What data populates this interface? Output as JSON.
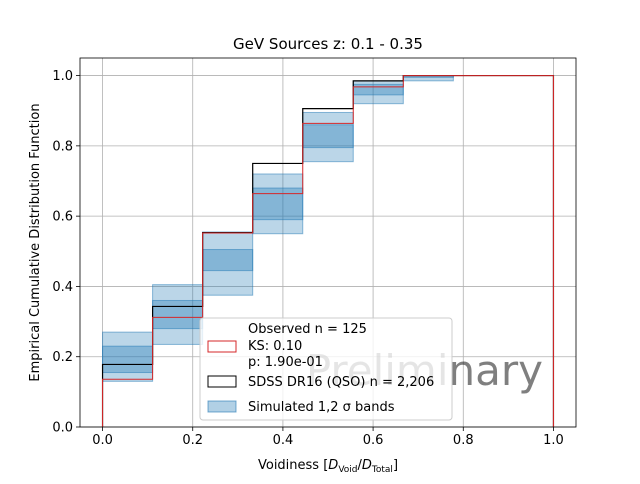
{
  "chart_data": {
    "type": "step",
    "title": "GeV Sources z: 0.1 - 0.35",
    "xlabel": "Voidiness [",
    "xlabel_tex": {
      "num": "D",
      "num_sub": "Void",
      "sep": "/",
      "den": "D",
      "den_sub": "Total",
      "close": "]"
    },
    "ylabel": "Empirical Cumulative Distribution Function",
    "xlim": [
      -0.05,
      1.05
    ],
    "ylim": [
      0.0,
      1.05
    ],
    "xticks": [
      "0.0",
      "0.2",
      "0.4",
      "0.6",
      "0.8",
      "1.0"
    ],
    "yticks": [
      "0.0",
      "0.2",
      "0.4",
      "0.6",
      "0.8",
      "1.0"
    ],
    "xtick_values": [
      0.0,
      0.2,
      0.4,
      0.6,
      0.8,
      1.0
    ],
    "ytick_values": [
      0.0,
      0.2,
      0.4,
      0.6,
      0.8,
      1.0
    ],
    "grid": true,
    "bin_edges": [
      0.0,
      0.111,
      0.222,
      0.333,
      0.444,
      0.556,
      0.667,
      0.778,
      1.0
    ],
    "series": [
      {
        "name": "Observed n = 125",
        "color": "#d62728",
        "values": [
          0.136,
          0.312,
          0.552,
          0.664,
          0.864,
          0.968,
          1.0,
          1.0
        ]
      },
      {
        "name": "SDSS DR16 (QSO) n = 2,206",
        "color": "#000000",
        "values": [
          0.178,
          0.343,
          0.553,
          0.75,
          0.906,
          0.985,
          1.0,
          1.0
        ]
      }
    ],
    "bands": {
      "name": "Simulated 1,2 σ bands",
      "color": "#1f77b4",
      "sigma1": [
        [
          0.155,
          0.23
        ],
        [
          0.28,
          0.36
        ],
        [
          0.445,
          0.505
        ],
        [
          0.59,
          0.68
        ],
        [
          0.795,
          0.86
        ],
        [
          0.945,
          0.975
        ],
        [
          0.995,
          1.0
        ],
        [
          1.0,
          1.0
        ]
      ],
      "sigma2": [
        [
          0.13,
          0.27
        ],
        [
          0.235,
          0.405
        ],
        [
          0.375,
          0.555
        ],
        [
          0.55,
          0.72
        ],
        [
          0.755,
          0.895
        ],
        [
          0.92,
          0.985
        ],
        [
          0.985,
          1.0
        ],
        [
          1.0,
          1.0
        ]
      ]
    },
    "legend": {
      "position": "lower-right",
      "entries": [
        {
          "lines": [
            "Observed n = 125",
            "KS: 0.10",
            "p: 1.90e-01"
          ],
          "style": "red-outline"
        },
        {
          "lines": [
            "SDSS DR16 (QSO) n = 2,206"
          ],
          "style": "black-outline"
        },
        {
          "lines": [
            "Simulated 1,2 σ bands"
          ],
          "style": "blue-fill"
        }
      ]
    },
    "watermark": "Preliminary"
  }
}
